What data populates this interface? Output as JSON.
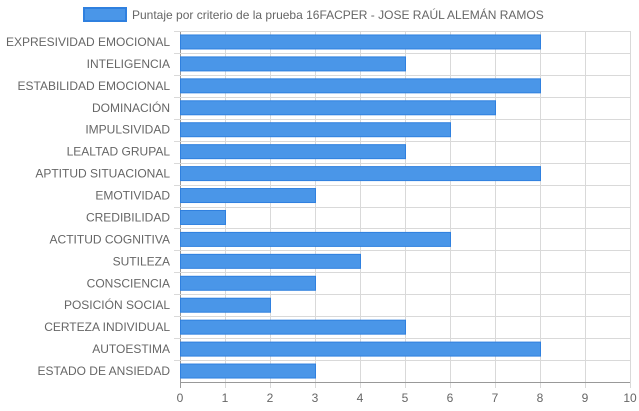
{
  "chart_data": {
    "type": "bar",
    "orientation": "horizontal",
    "categories": [
      "EXPRESIVIDAD EMOCIONAL",
      "INTELIGENCIA",
      "ESTABILIDAD EMOCIONAL",
      "DOMINACIÓN",
      "IMPULSIVIDAD",
      "LEALTAD GRUPAL",
      "APTITUD SITUACIONAL",
      "EMOTIVIDAD",
      "CREDIBILIDAD",
      "ACTITUD COGNITIVA",
      "SUTILEZA",
      "CONSCIENCIA",
      "POSICIÓN SOCIAL",
      "CERTEZA INDIVIDUAL",
      "AUTOESTIMA",
      "ESTADO DE ANSIEDAD"
    ],
    "series": [
      {
        "name": "Puntaje por criterio de la prueba 16FACPER - JOSE RAÚL ALEMÁN RAMOS",
        "values": [
          8,
          5,
          8,
          7,
          6,
          5,
          8,
          3,
          1,
          6,
          4,
          3,
          2,
          5,
          8,
          3
        ]
      }
    ],
    "xlim": [
      0,
      10
    ],
    "x_ticks": [
      "0",
      "1",
      "2",
      "3",
      "4",
      "5",
      "6",
      "7",
      "8",
      "9",
      "10"
    ],
    "grid": true,
    "legend_position": "top",
    "colors": {
      "bar_fill": "#4a96e8",
      "bar_stroke": "#2f80df",
      "grid": "#d9d9d9",
      "axis": "#999999",
      "text": "#666666"
    }
  }
}
